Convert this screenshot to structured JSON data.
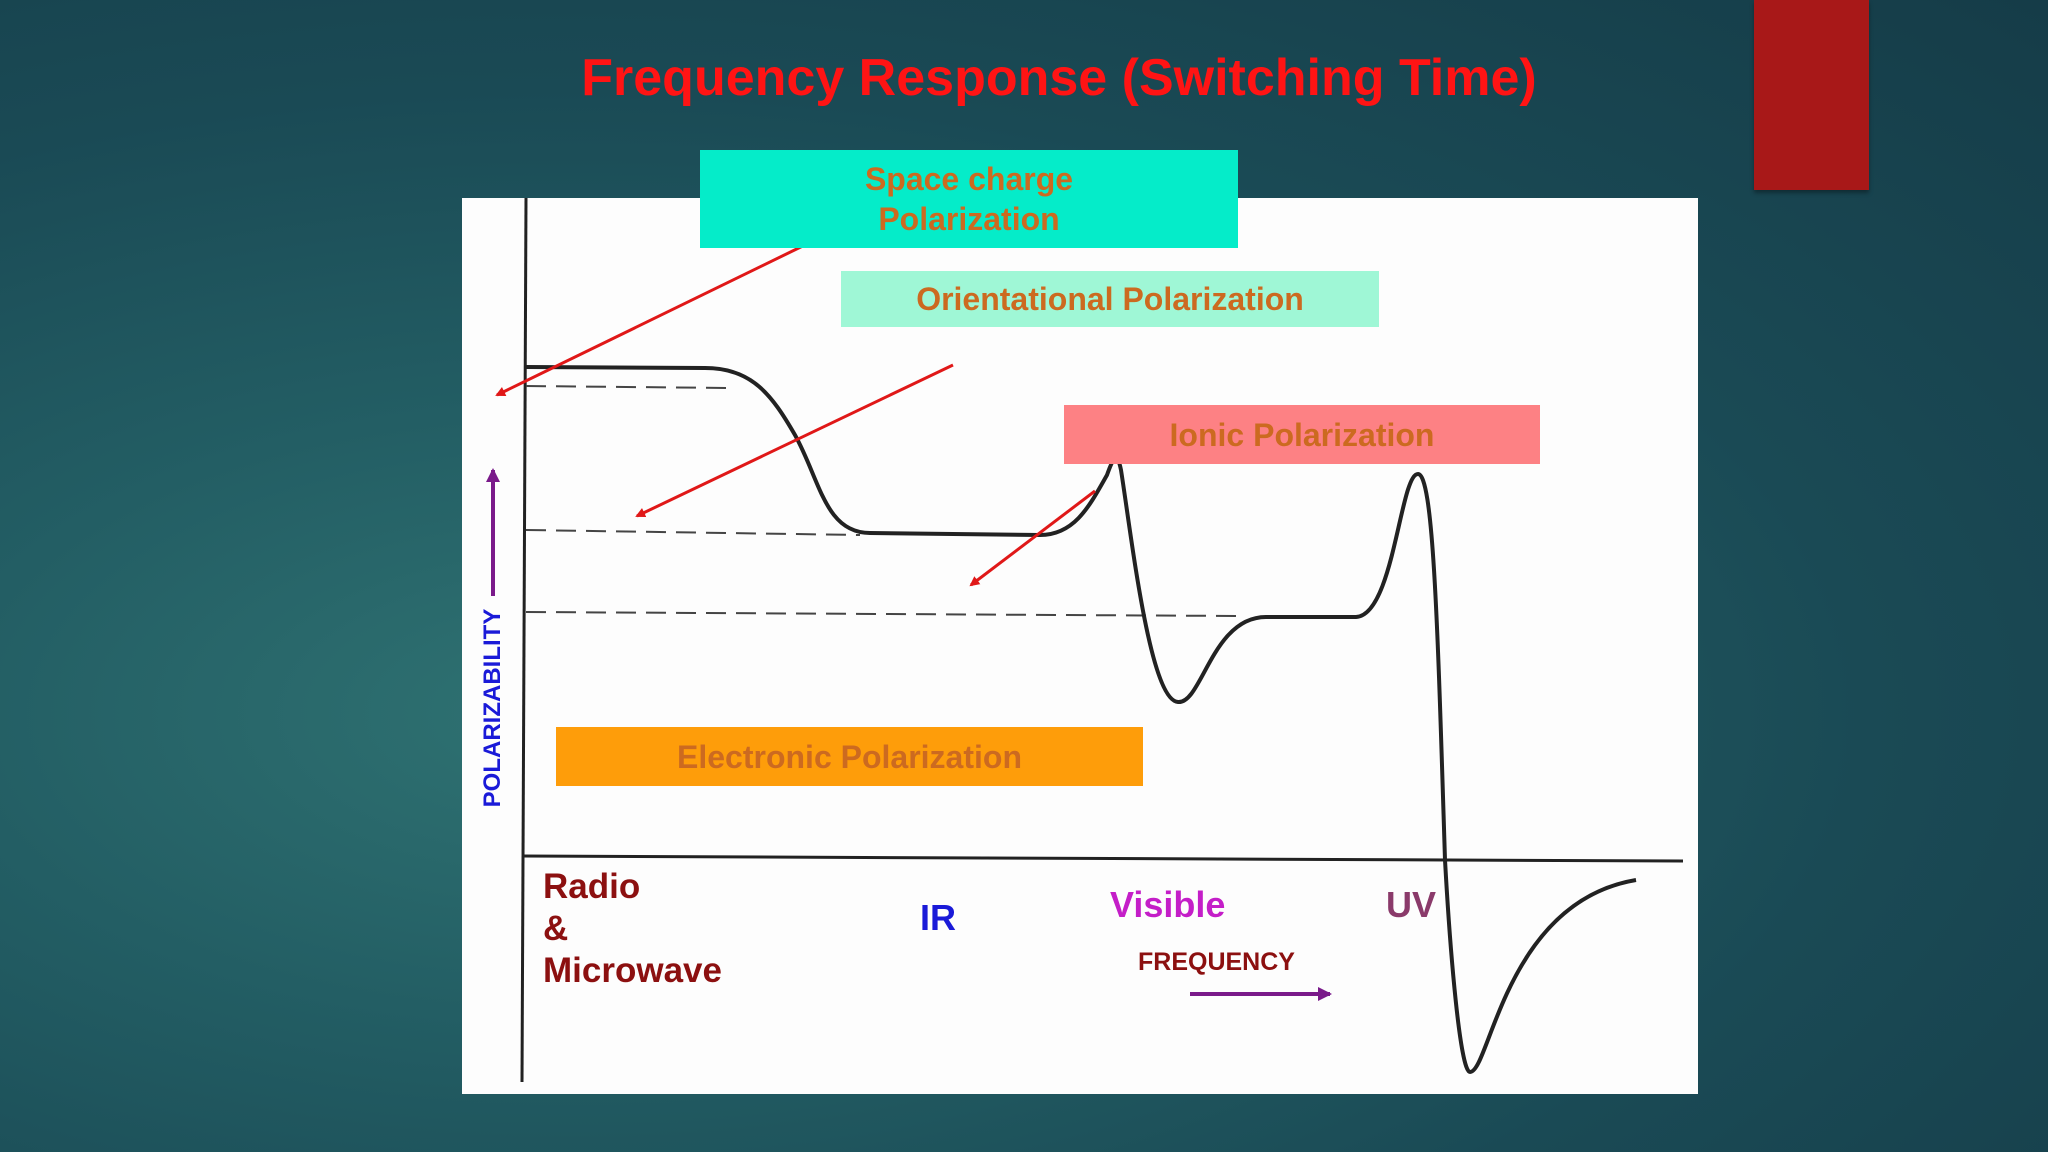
{
  "slide": {
    "title": "Frequency Response (Switching Time)"
  },
  "labels": {
    "space_charge": "Space charge\nPolarization",
    "orientational": "Orientational Polarization",
    "ionic": "Ionic Polarization",
    "electronic": "Electronic Polarization"
  },
  "axes": {
    "y_label": "POLARIZABILITY",
    "x_label": "FREQUENCY"
  },
  "bands": {
    "radio": "Radio\n&\nMicrowave",
    "ir": "IR",
    "visible": "Visible",
    "uv": "UV"
  },
  "colors": {
    "title": "#ff1414",
    "accent_bar": "#a81818",
    "space_charge_box": "#05ecc9",
    "orientational_box": "#9ff7d6",
    "ionic_box": "#fd8184",
    "electronic_box": "#fe9d0a",
    "label_text": "#cc6a20",
    "pointer_arrows": "#e01818",
    "axis_arrows": "#7a1a8a"
  }
}
